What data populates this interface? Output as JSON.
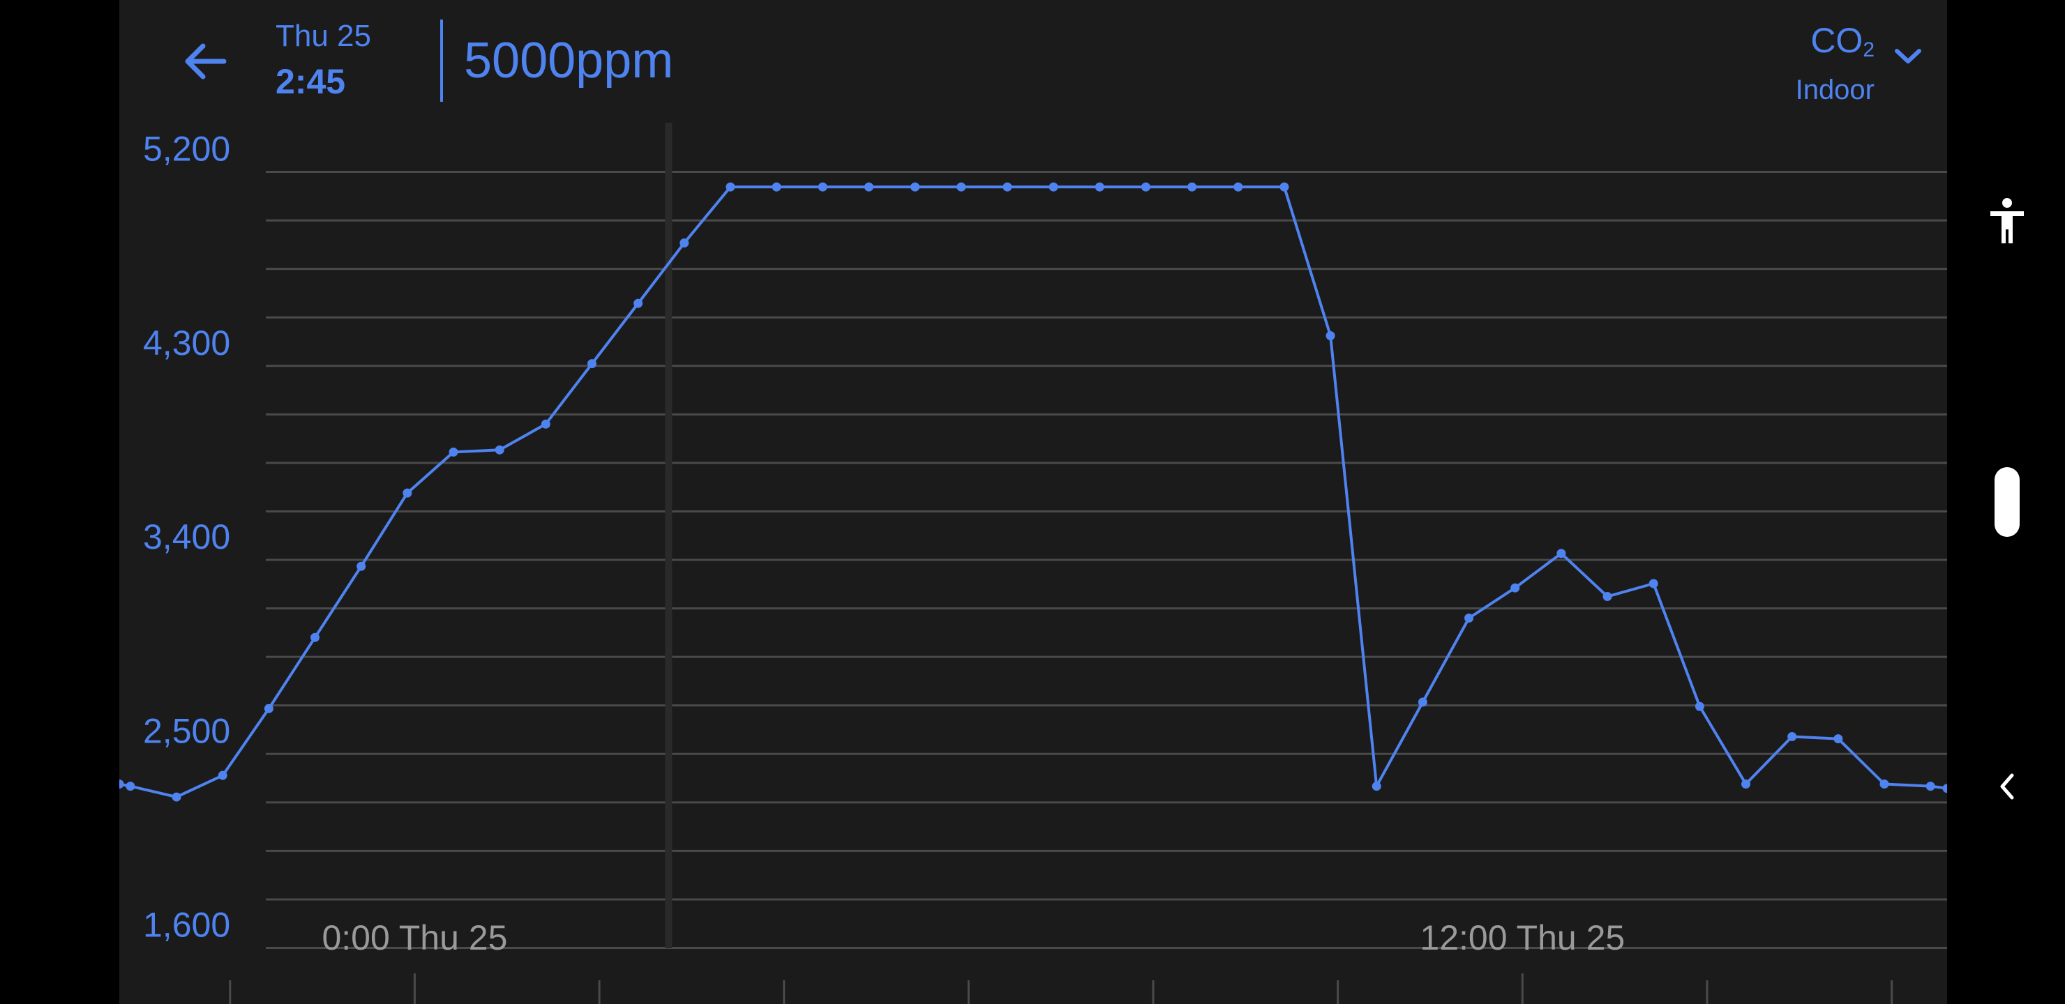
{
  "header": {
    "back_icon": "arrow-left-icon",
    "date": "Thu 25",
    "time": "2:45",
    "reading": "5000ppm",
    "metric": {
      "name": "CO",
      "subscript": "2",
      "location": "Indoor",
      "dropdown_icon": "chevron-down-icon"
    }
  },
  "side_rail": {
    "accessibility_icon": "accessibility-person-icon",
    "collapse_icon": "chevron-left-icon"
  },
  "colors": {
    "accent": "#4f83f0",
    "background": "#1b1b1c",
    "grid": "#4a4a4b",
    "x_label": "#9a9a9a",
    "cursor_band": "#2a2a2b"
  },
  "chart_data": {
    "type": "line",
    "y_unit": "ppm",
    "y_tick_labels": [
      "5,200",
      "4,300",
      "3,400",
      "2,500",
      "1,600"
    ],
    "y_ticks": [
      5200,
      4300,
      3400,
      2500,
      1600
    ],
    "ylim": [
      1600,
      5200
    ],
    "y_gridlines_every": 225,
    "x_tick_labels": [
      "0:00 Thu 25",
      "12:00 Thu 25"
    ],
    "x_label_hours": [
      0,
      12
    ],
    "xlim_hours": [
      -3.2,
      16.6
    ],
    "x_minor_ticks_every_hours": 2,
    "cursor_hours": 2.75,
    "grid": true,
    "series": [
      {
        "x_hours": [
          -3.2,
          -3.08,
          -2.58,
          -2.08,
          -1.58,
          -1.08,
          -0.58,
          -0.08,
          0.42,
          0.92,
          1.42,
          1.92,
          2.42,
          2.92,
          3.42,
          3.92,
          4.42,
          4.92,
          5.42,
          5.92,
          6.42,
          6.92,
          7.42,
          7.92,
          8.42,
          8.92,
          9.42,
          9.92,
          10.42,
          10.92,
          11.42,
          11.92,
          12.42,
          12.92,
          13.42,
          13.92,
          14.42,
          14.92,
          15.42,
          15.92,
          16.42,
          16.6
        ],
        "y_ppm": [
          2360,
          2350,
          2300,
          2400,
          2710,
          3040,
          3370,
          3710,
          3900,
          3910,
          4030,
          4310,
          4590,
          4870,
          5130,
          5130,
          5130,
          5130,
          5130,
          5130,
          5130,
          5130,
          5130,
          5130,
          5130,
          5130,
          5130,
          4440,
          2350,
          2740,
          3130,
          3270,
          3430,
          3230,
          3290,
          2720,
          2360,
          2580,
          2570,
          2360,
          2350,
          2340
        ]
      }
    ]
  }
}
